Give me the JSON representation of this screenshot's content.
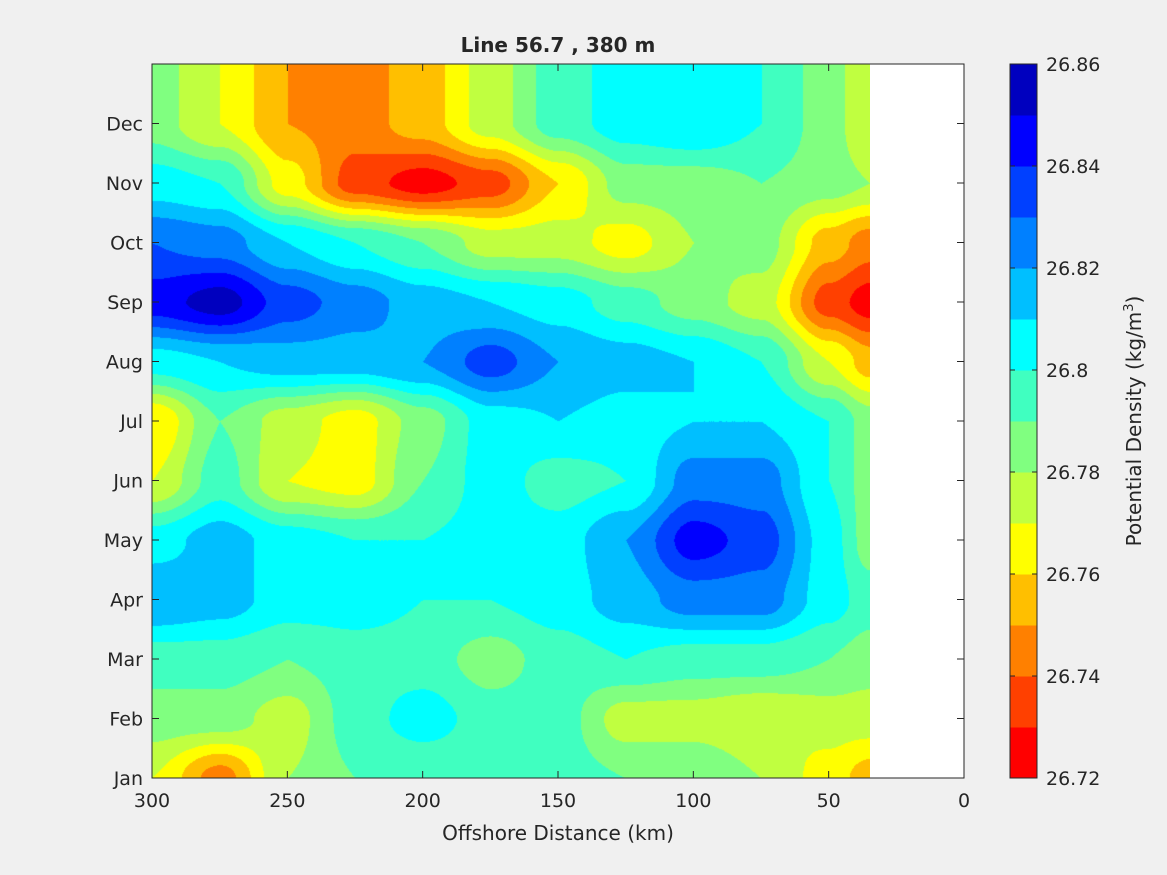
{
  "chart_data": {
    "type": "heatmap",
    "subtype": "filled-contour",
    "title": "Line 56.7 , 380 m",
    "xlabel": "Offshore Distance (km)",
    "ylabel": "",
    "xlim": [
      300,
      0
    ],
    "x_direction": "reversed",
    "x_ticks": [
      300,
      250,
      200,
      150,
      100,
      50,
      0
    ],
    "y_ticks": [
      "Jan",
      "Feb",
      "Mar",
      "Apr",
      "May",
      "Jun",
      "Jul",
      "Aug",
      "Sep",
      "Oct",
      "Nov",
      "Dec"
    ],
    "data_coverage_km": [
      300,
      35
    ],
    "grid": false,
    "colorbar": {
      "label": "Potential Density (kg/m",
      "label_superscript": "3",
      "label_suffix": ")",
      "position": "right",
      "range": [
        26.72,
        26.86
      ],
      "tick_labels": [
        "26.72",
        "26.74",
        "26.76",
        "26.78",
        "26.8",
        "26.82",
        "26.84",
        "26.86"
      ],
      "levels": [
        26.72,
        26.73,
        26.74,
        26.75,
        26.76,
        26.77,
        26.78,
        26.79,
        26.8,
        26.81,
        26.82,
        26.83,
        26.84,
        26.85,
        26.86
      ],
      "colors": [
        "#ff0000",
        "#ff4000",
        "#ff8000",
        "#ffbf00",
        "#ffff00",
        "#c0ff40",
        "#80ff80",
        "#40ffc0",
        "#00ffff",
        "#00bfff",
        "#0080ff",
        "#0040ff",
        "#0000ff",
        "#0000bf"
      ]
    },
    "x_km": [
      300,
      275,
      250,
      225,
      200,
      175,
      150,
      125,
      100,
      75,
      50,
      35
    ],
    "rows": [
      {
        "month": "Jan",
        "values": [
          26.77,
          26.745,
          26.78,
          26.79,
          26.79,
          26.79,
          26.795,
          26.79,
          26.79,
          26.78,
          26.765,
          26.755
        ]
      },
      {
        "month": "Feb",
        "values": [
          26.785,
          26.785,
          26.775,
          26.795,
          26.805,
          26.795,
          26.795,
          26.775,
          26.775,
          26.77,
          26.775,
          26.775
        ]
      },
      {
        "month": "Mar",
        "values": [
          26.795,
          26.795,
          26.79,
          26.795,
          26.795,
          26.785,
          26.795,
          26.8,
          26.795,
          26.795,
          26.79,
          26.785
        ]
      },
      {
        "month": "Apr",
        "values": [
          26.82,
          26.815,
          26.805,
          26.805,
          26.8,
          26.8,
          26.805,
          26.815,
          26.825,
          26.825,
          26.805,
          26.795
        ]
      },
      {
        "month": "May",
        "values": [
          26.805,
          26.815,
          26.805,
          26.8,
          26.8,
          26.805,
          26.805,
          26.82,
          26.845,
          26.835,
          26.805,
          26.785
        ]
      },
      {
        "month": "Jun",
        "values": [
          26.77,
          26.795,
          26.77,
          26.765,
          26.79,
          26.805,
          26.795,
          26.8,
          26.825,
          26.825,
          26.8,
          26.785
        ]
      },
      {
        "month": "Jul",
        "values": [
          26.76,
          26.79,
          26.775,
          26.765,
          26.785,
          26.805,
          26.81,
          26.805,
          26.81,
          26.81,
          26.8,
          26.785
        ]
      },
      {
        "month": "Aug",
        "values": [
          26.805,
          26.81,
          26.815,
          26.815,
          26.82,
          26.835,
          26.82,
          26.815,
          26.81,
          26.8,
          26.77,
          26.755
        ]
      },
      {
        "month": "Sep",
        "values": [
          26.845,
          26.855,
          26.835,
          26.825,
          26.815,
          26.81,
          26.805,
          26.795,
          26.785,
          26.775,
          26.735,
          26.725
        ]
      },
      {
        "month": "Oct",
        "values": [
          26.83,
          26.825,
          26.81,
          26.8,
          26.79,
          26.775,
          26.775,
          26.765,
          26.78,
          26.785,
          26.755,
          26.745
        ]
      },
      {
        "month": "Nov",
        "values": [
          26.805,
          26.8,
          26.765,
          26.735,
          26.725,
          26.735,
          26.76,
          26.785,
          26.785,
          26.79,
          26.785,
          26.78
        ]
      },
      {
        "month": "Dec",
        "values": [
          26.785,
          26.77,
          26.75,
          26.745,
          26.755,
          26.775,
          26.795,
          26.805,
          26.81,
          26.8,
          26.785,
          26.77
        ]
      }
    ]
  }
}
